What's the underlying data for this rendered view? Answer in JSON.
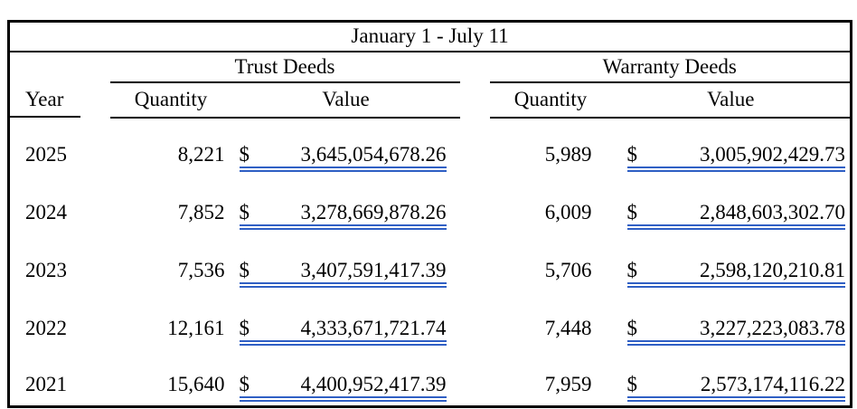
{
  "title": "January 1 - July 11",
  "columns": {
    "year": "Year",
    "quantity": "Quantity",
    "value": "Value"
  },
  "groups": [
    {
      "label": "Trust Deeds"
    },
    {
      "label": "Warranty Deeds"
    }
  ],
  "currency_symbol": "$",
  "colors": {
    "value_underline_blue": "#2f5fc4",
    "border_black": "#000000"
  },
  "rows": [
    {
      "year": "2025",
      "trust_quantity": "8,221",
      "trust_value": "3,645,054,678.26",
      "warranty_quantity": "5,989",
      "warranty_value": "3,005,902,429.73"
    },
    {
      "year": "2024",
      "trust_quantity": "7,852",
      "trust_value": "3,278,669,878.26",
      "warranty_quantity": "6,009",
      "warranty_value": "2,848,603,302.70"
    },
    {
      "year": "2023",
      "trust_quantity": "7,536",
      "trust_value": "3,407,591,417.39",
      "warranty_quantity": "5,706",
      "warranty_value": "2,598,120,210.81"
    },
    {
      "year": "2022",
      "trust_quantity": "12,161",
      "trust_value": "4,333,671,721.74",
      "warranty_quantity": "7,448",
      "warranty_value": "3,227,223,083.78"
    },
    {
      "year": "2021",
      "trust_quantity": "15,640",
      "trust_value": "4,400,952,417.39",
      "warranty_quantity": "7,959",
      "warranty_value": "2,573,174,116.22"
    }
  ]
}
